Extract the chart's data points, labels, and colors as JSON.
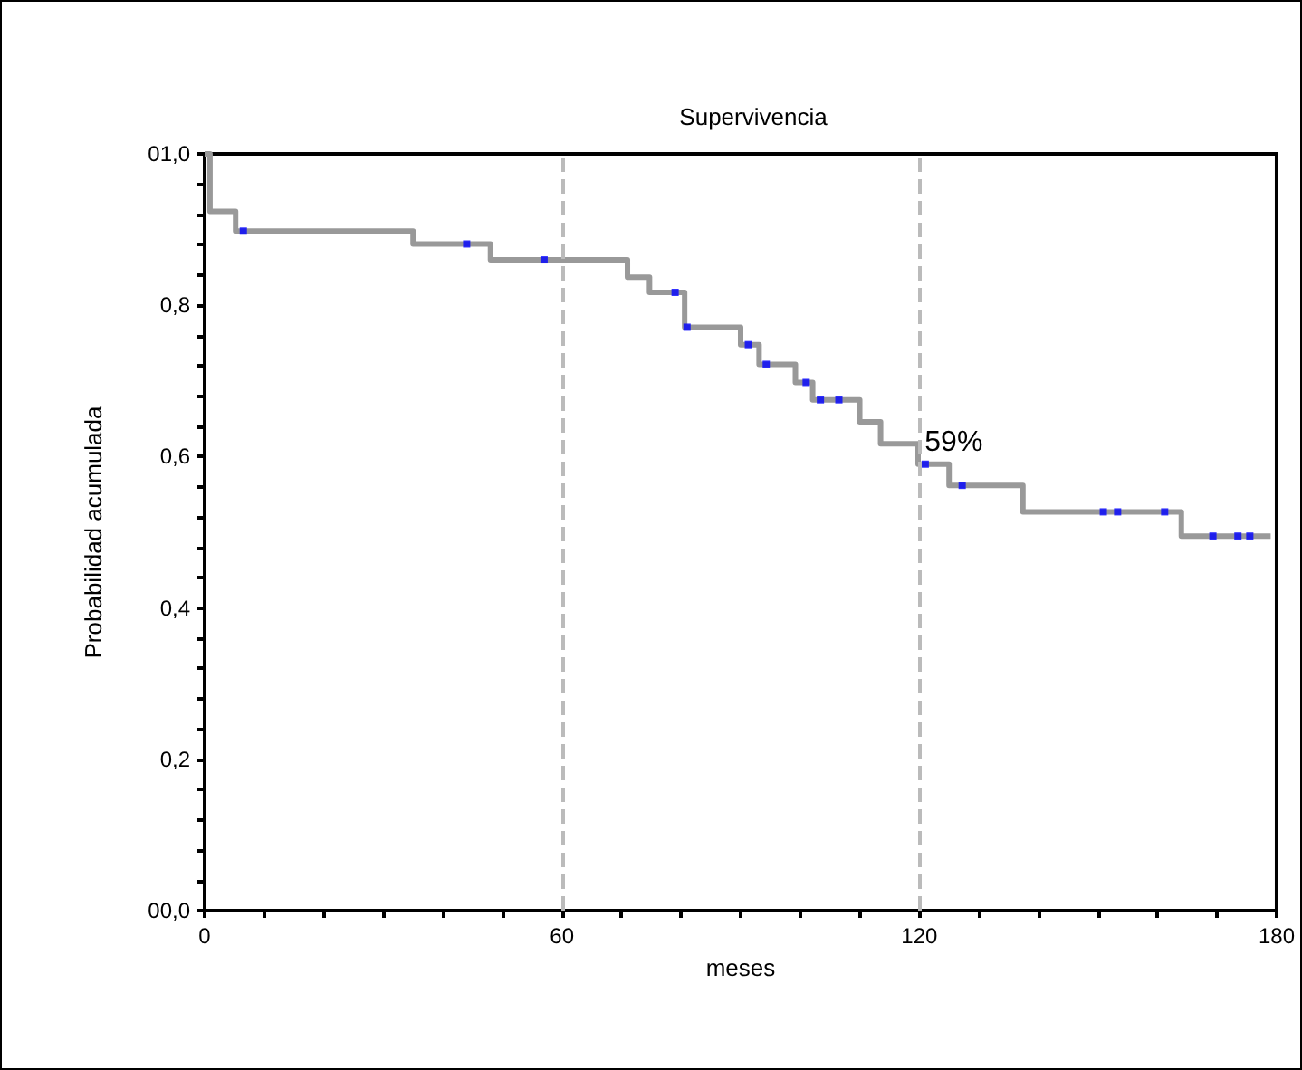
{
  "chart_data": {
    "type": "step",
    "title": "Supervivencia",
    "xlabel": "meses",
    "ylabel": "Probabilidad acumulada",
    "xlim": [
      0,
      180
    ],
    "xticks": [
      0,
      {
        "value": 10,
        "label": null
      },
      {
        "value": 20,
        "label": null
      },
      {
        "value": 30,
        "label": null
      },
      {
        "value": 40,
        "label": null
      },
      {
        "value": 50,
        "label": null
      },
      60,
      {
        "value": 70,
        "label": null
      },
      {
        "value": 80,
        "label": null
      },
      {
        "value": 90,
        "label": null
      },
      {
        "value": 100,
        "label": null
      },
      {
        "value": 110,
        "label": null
      },
      120,
      {
        "value": 130,
        "label": null
      },
      {
        "value": 140,
        "label": null
      },
      {
        "value": 150,
        "label": null
      },
      {
        "value": 160,
        "label": null
      },
      {
        "value": 170,
        "label": null
      },
      180
    ],
    "ylim": [
      0,
      1
    ],
    "yticks": [
      {
        "value": 0,
        "label": "00,0"
      },
      {
        "value": 0.04,
        "label": null
      },
      {
        "value": 0.08,
        "label": null
      },
      {
        "value": 0.12,
        "label": null
      },
      {
        "value": 0.16,
        "label": null
      },
      {
        "value": 0.2,
        "label": "0,2"
      },
      {
        "value": 0.24,
        "label": null
      },
      {
        "value": 0.28,
        "label": null
      },
      {
        "value": 0.32,
        "label": null
      },
      {
        "value": 0.36,
        "label": null
      },
      {
        "value": 0.4,
        "label": "0,4"
      },
      {
        "value": 0.44,
        "label": null
      },
      {
        "value": 0.48,
        "label": null
      },
      {
        "value": 0.52,
        "label": null
      },
      {
        "value": 0.56,
        "label": null
      },
      {
        "value": 0.6,
        "label": "0,6"
      },
      {
        "value": 0.64,
        "label": null
      },
      {
        "value": 0.68,
        "label": null
      },
      {
        "value": 0.72,
        "label": null
      },
      {
        "value": 0.76,
        "label": null
      },
      {
        "value": 0.8,
        "label": "0,8"
      },
      {
        "value": 0.84,
        "label": null
      },
      {
        "value": 0.88,
        "label": null
      },
      {
        "value": 0.92,
        "label": null
      },
      {
        "value": 0.96,
        "label": null
      },
      {
        "value": 1,
        "label": "01,0"
      }
    ],
    "series": [
      {
        "color": "#999999",
        "line_style": "solid",
        "marker": "none",
        "x": [
          0,
          0.9,
          5.2,
          35,
          48,
          71,
          74.7,
          80.6,
          90,
          93.1,
          99.2,
          102.1,
          110,
          113.5,
          119.8,
          125,
          137.4,
          164,
          179
        ],
        "values": [
          1,
          0.924,
          0.898,
          0.881,
          0.86,
          0.837,
          0.817,
          0.771,
          0.748,
          0.722,
          0.698,
          0.675,
          0.646,
          0.617,
          0.59,
          0.562,
          0.527,
          0.495,
          0.495
        ]
      },
      {
        "type": "scatter",
        "color": "#0000ff",
        "marker": "square",
        "x": [
          6.5,
          44,
          57,
          79,
          81,
          91.3,
          94.3,
          101,
          103.4,
          106.5,
          121,
          127.2,
          150.9,
          153.3,
          161.2,
          169.3,
          173.5,
          175.5
        ],
        "values": [
          0.898,
          0.881,
          0.86,
          0.817,
          0.771,
          0.748,
          0.722,
          0.698,
          0.675,
          0.675,
          0.59,
          0.562,
          0.527,
          0.527,
          0.527,
          0.495,
          0.495,
          0.495
        ]
      }
    ],
    "ref_lines": [
      {
        "axis": "x",
        "value": 60,
        "color": "#bbbbbb",
        "line_style": "dashed"
      },
      {
        "axis": "x",
        "value": 120,
        "color": "#bbbbbb",
        "line_style": "dashed"
      }
    ],
    "annotations": [
      {
        "text": "59%",
        "x": 120,
        "y": 0.59
      }
    ],
    "grid": false
  }
}
